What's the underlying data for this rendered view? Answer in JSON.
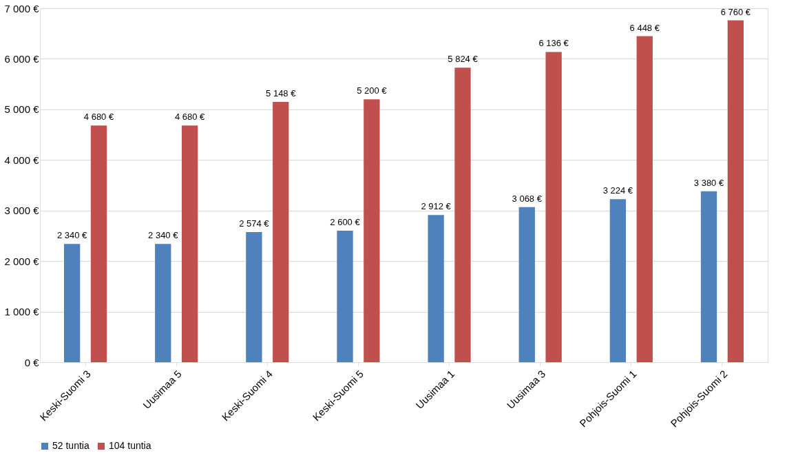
{
  "chart_data": {
    "type": "bar",
    "categories": [
      "Keski-Suomi 3",
      "Uusimaa 5",
      "Keski-Suomi 4",
      "Keski-Suomi 5",
      "Uusimaa 1",
      "Uusimaa 3",
      "Pohjois-Suomi 1",
      "Pohjois-Suomi 2"
    ],
    "series": [
      {
        "name": "52 tuntia",
        "color": "#4f81bd",
        "values": [
          2340,
          2340,
          2574,
          2600,
          2912,
          3068,
          3224,
          3380
        ],
        "value_labels": [
          "2 340 €",
          "2 340 €",
          "2 574 €",
          "2 600 €",
          "2 912 €",
          "3 068 €",
          "3 224 €",
          "3 380 €"
        ]
      },
      {
        "name": "104 tuntia",
        "color": "#c0504d",
        "values": [
          4680,
          4680,
          5148,
          5200,
          5824,
          6136,
          6448,
          6760
        ],
        "value_labels": [
          "4 680 €",
          "4 680 €",
          "5 148 €",
          "5 200 €",
          "5 824 €",
          "6 136 €",
          "6 448 €",
          "6 760 €"
        ]
      }
    ],
    "ylim": [
      0,
      7000
    ],
    "yticks": [
      {
        "value": 0,
        "label": "0 €"
      },
      {
        "value": 1000,
        "label": "1 000 €"
      },
      {
        "value": 2000,
        "label": "2 000 €"
      },
      {
        "value": 3000,
        "label": "3 000 €"
      },
      {
        "value": 4000,
        "label": "4 000 €"
      },
      {
        "value": 5000,
        "label": "5 000 €"
      },
      {
        "value": 6000,
        "label": "6 000 €"
      },
      {
        "value": 7000,
        "label": "7 000 €"
      }
    ],
    "grid": "y",
    "legend": "bottom"
  }
}
